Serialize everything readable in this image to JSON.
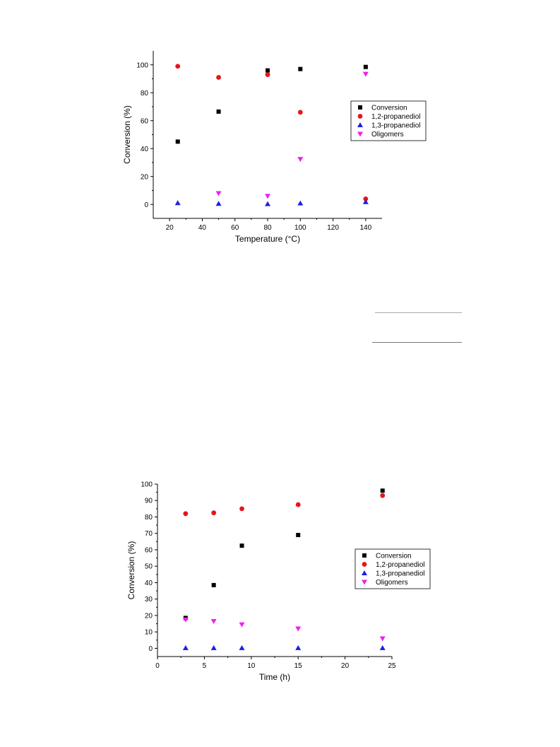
{
  "colors": {
    "conversion": "#000000",
    "propanediol_12": "#e8141a",
    "propanediol_13": "#1e1ee6",
    "oligomers": "#f01ef0"
  },
  "chart_data": [
    {
      "type": "scatter",
      "xlabel": "Temperature (°C)",
      "ylabel": "Conversion (%)",
      "xlim": [
        10,
        150
      ],
      "ylim": [
        -10,
        110
      ],
      "xticks": [
        20,
        40,
        60,
        80,
        100,
        120,
        140
      ],
      "yticks": [
        0,
        20,
        40,
        60,
        80,
        100
      ],
      "legend_position": "right",
      "grid": false,
      "series": [
        {
          "name": "Conversion",
          "marker": "square",
          "color": "#000000",
          "x": [
            25,
            50,
            80,
            100,
            140
          ],
          "y": [
            45,
            66.5,
            96,
            97,
            98.5
          ]
        },
        {
          "name": "1,2-propanediol",
          "marker": "circle",
          "color": "#e8141a",
          "x": [
            25,
            50,
            80,
            100,
            140
          ],
          "y": [
            99,
            91,
            93,
            66,
            4
          ]
        },
        {
          "name": "1,3-propanediol",
          "marker": "triangle-up",
          "color": "#1e1ee6",
          "x": [
            25,
            50,
            80,
            100,
            140
          ],
          "y": [
            1,
            0.5,
            0.3,
            0.8,
            1.8
          ]
        },
        {
          "name": "Oligomers",
          "marker": "triangle-down",
          "color": "#f01ef0",
          "x": [
            50,
            80,
            100,
            140
          ],
          "y": [
            8,
            6,
            32.5,
            93.5
          ]
        }
      ]
    },
    {
      "type": "scatter",
      "xlabel": "Time (h)",
      "ylabel": "Conversion (%)",
      "xlim": [
        0,
        25
      ],
      "ylim": [
        -5,
        100
      ],
      "xticks": [
        0,
        5,
        10,
        15,
        20,
        25
      ],
      "yticks": [
        0,
        10,
        20,
        30,
        40,
        50,
        60,
        70,
        80,
        90,
        100
      ],
      "legend_position": "right",
      "grid": false,
      "series": [
        {
          "name": "Conversion",
          "marker": "square",
          "color": "#000000",
          "x": [
            3,
            6,
            9,
            15,
            24
          ],
          "y": [
            18.5,
            38.5,
            62.5,
            69,
            96
          ]
        },
        {
          "name": "1,2-propanediol",
          "marker": "circle",
          "color": "#e8141a",
          "x": [
            3,
            6,
            9,
            15,
            24
          ],
          "y": [
            82,
            82.5,
            85,
            87.5,
            93
          ]
        },
        {
          "name": "1,3-propanediol",
          "marker": "triangle-up",
          "color": "#1e1ee6",
          "x": [
            3,
            6,
            9,
            15,
            24
          ],
          "y": [
            0.2,
            0.2,
            0.2,
            0.2,
            0.2
          ]
        },
        {
          "name": "Oligomers",
          "marker": "triangle-down",
          "color": "#f01ef0",
          "x": [
            3,
            6,
            9,
            15,
            24
          ],
          "y": [
            17.5,
            16.5,
            14.5,
            12,
            6
          ]
        }
      ]
    }
  ]
}
